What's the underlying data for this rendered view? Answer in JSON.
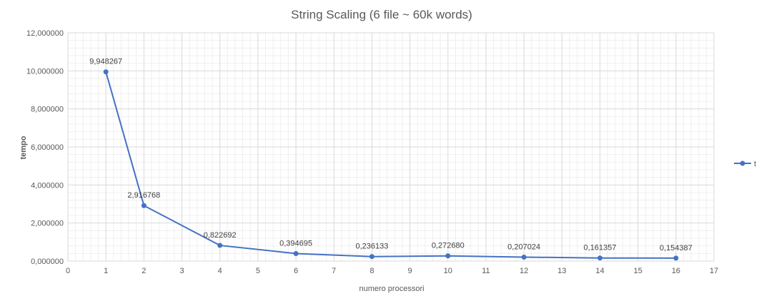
{
  "chart_data": {
    "type": "scatter",
    "title": "String Scaling (6 file ~ 60k words)",
    "xlabel": "numero processori",
    "ylabel": "tempo",
    "xlim": [
      0,
      17
    ],
    "ylim": [
      0,
      12
    ],
    "x_ticks": [
      "0",
      "1",
      "2",
      "3",
      "4",
      "5",
      "6",
      "7",
      "8",
      "9",
      "10",
      "11",
      "12",
      "13",
      "14",
      "15",
      "16",
      "17"
    ],
    "y_ticks": [
      "0,000000",
      "2,000000",
      "4,000000",
      "6,000000",
      "8,000000",
      "10,000000",
      "12,000000"
    ],
    "grid": true,
    "minor_grid": true,
    "legend_position": "right",
    "series": [
      {
        "name": "t",
        "color": "#4472c4",
        "x": [
          1,
          2,
          4,
          6,
          8,
          10,
          12,
          14,
          16
        ],
        "y": [
          9.948267,
          2.916768,
          0.822692,
          0.394695,
          0.236133,
          0.27268,
          0.207024,
          0.161357,
          0.154387
        ],
        "labels": [
          "9,948267",
          "2,916768",
          "0,822692",
          "0,394695",
          "0,236133",
          "0,272680",
          "0,207024",
          "0,161357",
          "0,154387"
        ]
      }
    ]
  }
}
